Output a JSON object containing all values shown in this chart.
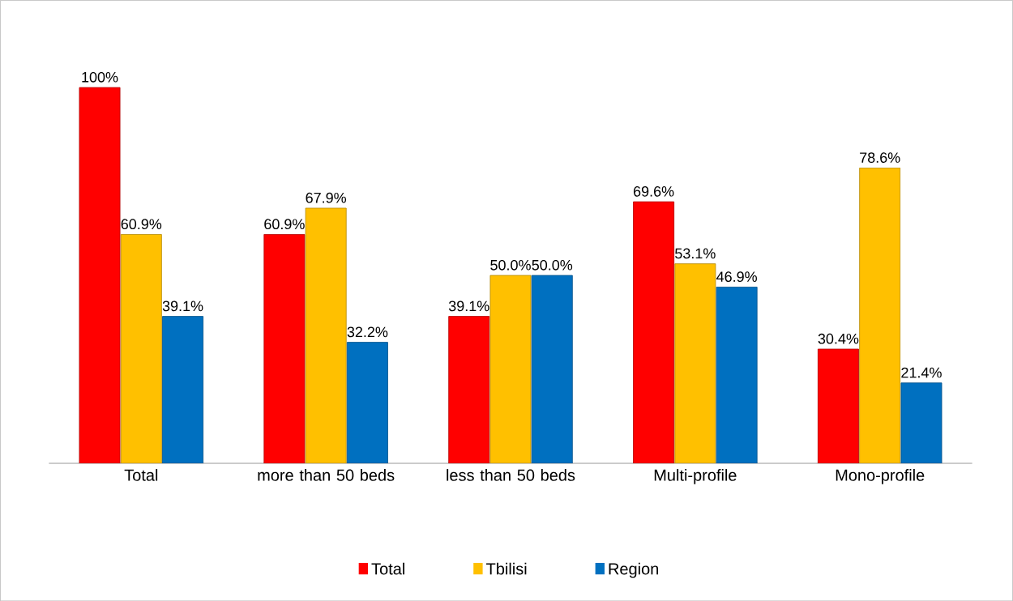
{
  "chart_data": {
    "type": "bar",
    "categories": [
      "Total",
      "more than 50 beds",
      "less than 50 beds",
      "Multi-profile",
      "Mono-profile"
    ],
    "series": [
      {
        "name": "Total",
        "color": "#ff0000",
        "values": [
          100,
          60.9,
          39.1,
          69.6,
          30.4
        ],
        "value_labels": [
          "100%",
          "60.9%",
          "39.1%",
          "69.6%",
          "30.4%"
        ]
      },
      {
        "name": "Tbilisi",
        "color": "#ffc000",
        "values": [
          60.9,
          67.9,
          50.0,
          53.1,
          78.6
        ],
        "value_labels": [
          "60.9%",
          "67.9%",
          "50.0%",
          "53.1%",
          "78.6%"
        ]
      },
      {
        "name": "Region",
        "color": "#0070c0",
        "values": [
          39.1,
          32.2,
          50.0,
          46.9,
          21.4
        ],
        "value_labels": [
          "39.1%",
          "32.2%",
          "50.0%",
          "46.9%",
          "21.4%"
        ]
      }
    ],
    "legend": "bottom"
  }
}
